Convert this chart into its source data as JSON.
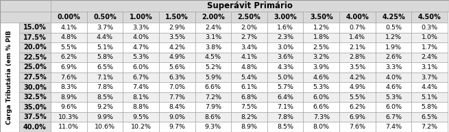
{
  "title": "Superávit Primário",
  "col_headers": [
    "0.00%",
    "0.50%",
    "1.00%",
    "1.50%",
    "2.00%",
    "2.50%",
    "3.00%",
    "3.50%",
    "4.00%",
    "4.25%",
    "4.50%"
  ],
  "row_headers": [
    "15.0%",
    "17.5%",
    "20.0%",
    "22.5%",
    "25.0%",
    "27.5%",
    "30.0%",
    "32.5%",
    "35.0%",
    "37.5%",
    "40.0%"
  ],
  "y_label": "Carga Tributária (em % PIB",
  "cell_data": [
    [
      "4.1%",
      "3.7%",
      "3.3%",
      "2.9%",
      "2.4%",
      "2.0%",
      "1.6%",
      "1.2%",
      "0.7%",
      "0.5%",
      "0.3%"
    ],
    [
      "4.8%",
      "4.4%",
      "4.0%",
      "3.5%",
      "3.1%",
      "2.7%",
      "2.3%",
      "1.8%",
      "1.4%",
      "1.2%",
      "1.0%"
    ],
    [
      "5.5%",
      "5.1%",
      "4.7%",
      "4.2%",
      "3.8%",
      "3.4%",
      "3.0%",
      "2.5%",
      "2.1%",
      "1.9%",
      "1.7%"
    ],
    [
      "6.2%",
      "5.8%",
      "5.3%",
      "4.9%",
      "4.5%",
      "4.1%",
      "3.6%",
      "3.2%",
      "2.8%",
      "2.6%",
      "2.4%"
    ],
    [
      "6.9%",
      "6.5%",
      "6.0%",
      "5.6%",
      "5.2%",
      "4.8%",
      "4.3%",
      "3.9%",
      "3.5%",
      "3.3%",
      "3.1%"
    ],
    [
      "7.6%",
      "7.1%",
      "6.7%",
      "6.3%",
      "5.9%",
      "5.4%",
      "5.0%",
      "4.6%",
      "4.2%",
      "4.0%",
      "3.7%"
    ],
    [
      "8.3%",
      "7.8%",
      "7.4%",
      "7.0%",
      "6.6%",
      "6.1%",
      "5.7%",
      "5.3%",
      "4.9%",
      "4.6%",
      "4.4%"
    ],
    [
      "8.9%",
      "8.5%",
      "8.1%",
      "7.7%",
      "7.2%",
      "6.8%",
      "6.4%",
      "6.0%",
      "5.5%",
      "5.3%",
      "5.1%"
    ],
    [
      "9.6%",
      "9.2%",
      "8.8%",
      "8.4%",
      "7.9%",
      "7.5%",
      "7.1%",
      "6.6%",
      "6.2%",
      "6.0%",
      "5.8%"
    ],
    [
      "10.3%",
      "9.9%",
      "9.5%",
      "9.0%",
      "8.6%",
      "8.2%",
      "7.8%",
      "7.3%",
      "6.9%",
      "6.7%",
      "6.5%"
    ],
    [
      "11.0%",
      "10.6%",
      "10.2%",
      "9.7%",
      "9.3%",
      "8.9%",
      "8.5%",
      "8.0%",
      "7.6%",
      "7.4%",
      "7.2%"
    ]
  ],
  "bg_header_color": "#d9d9d9",
  "bg_cell_even": "#ffffff",
  "bg_cell_odd": "#efefef",
  "border_color": "#999999",
  "title_fontsize": 8.5,
  "header_fontsize": 7,
  "cell_fontsize": 6.8,
  "row_header_fontsize": 7
}
